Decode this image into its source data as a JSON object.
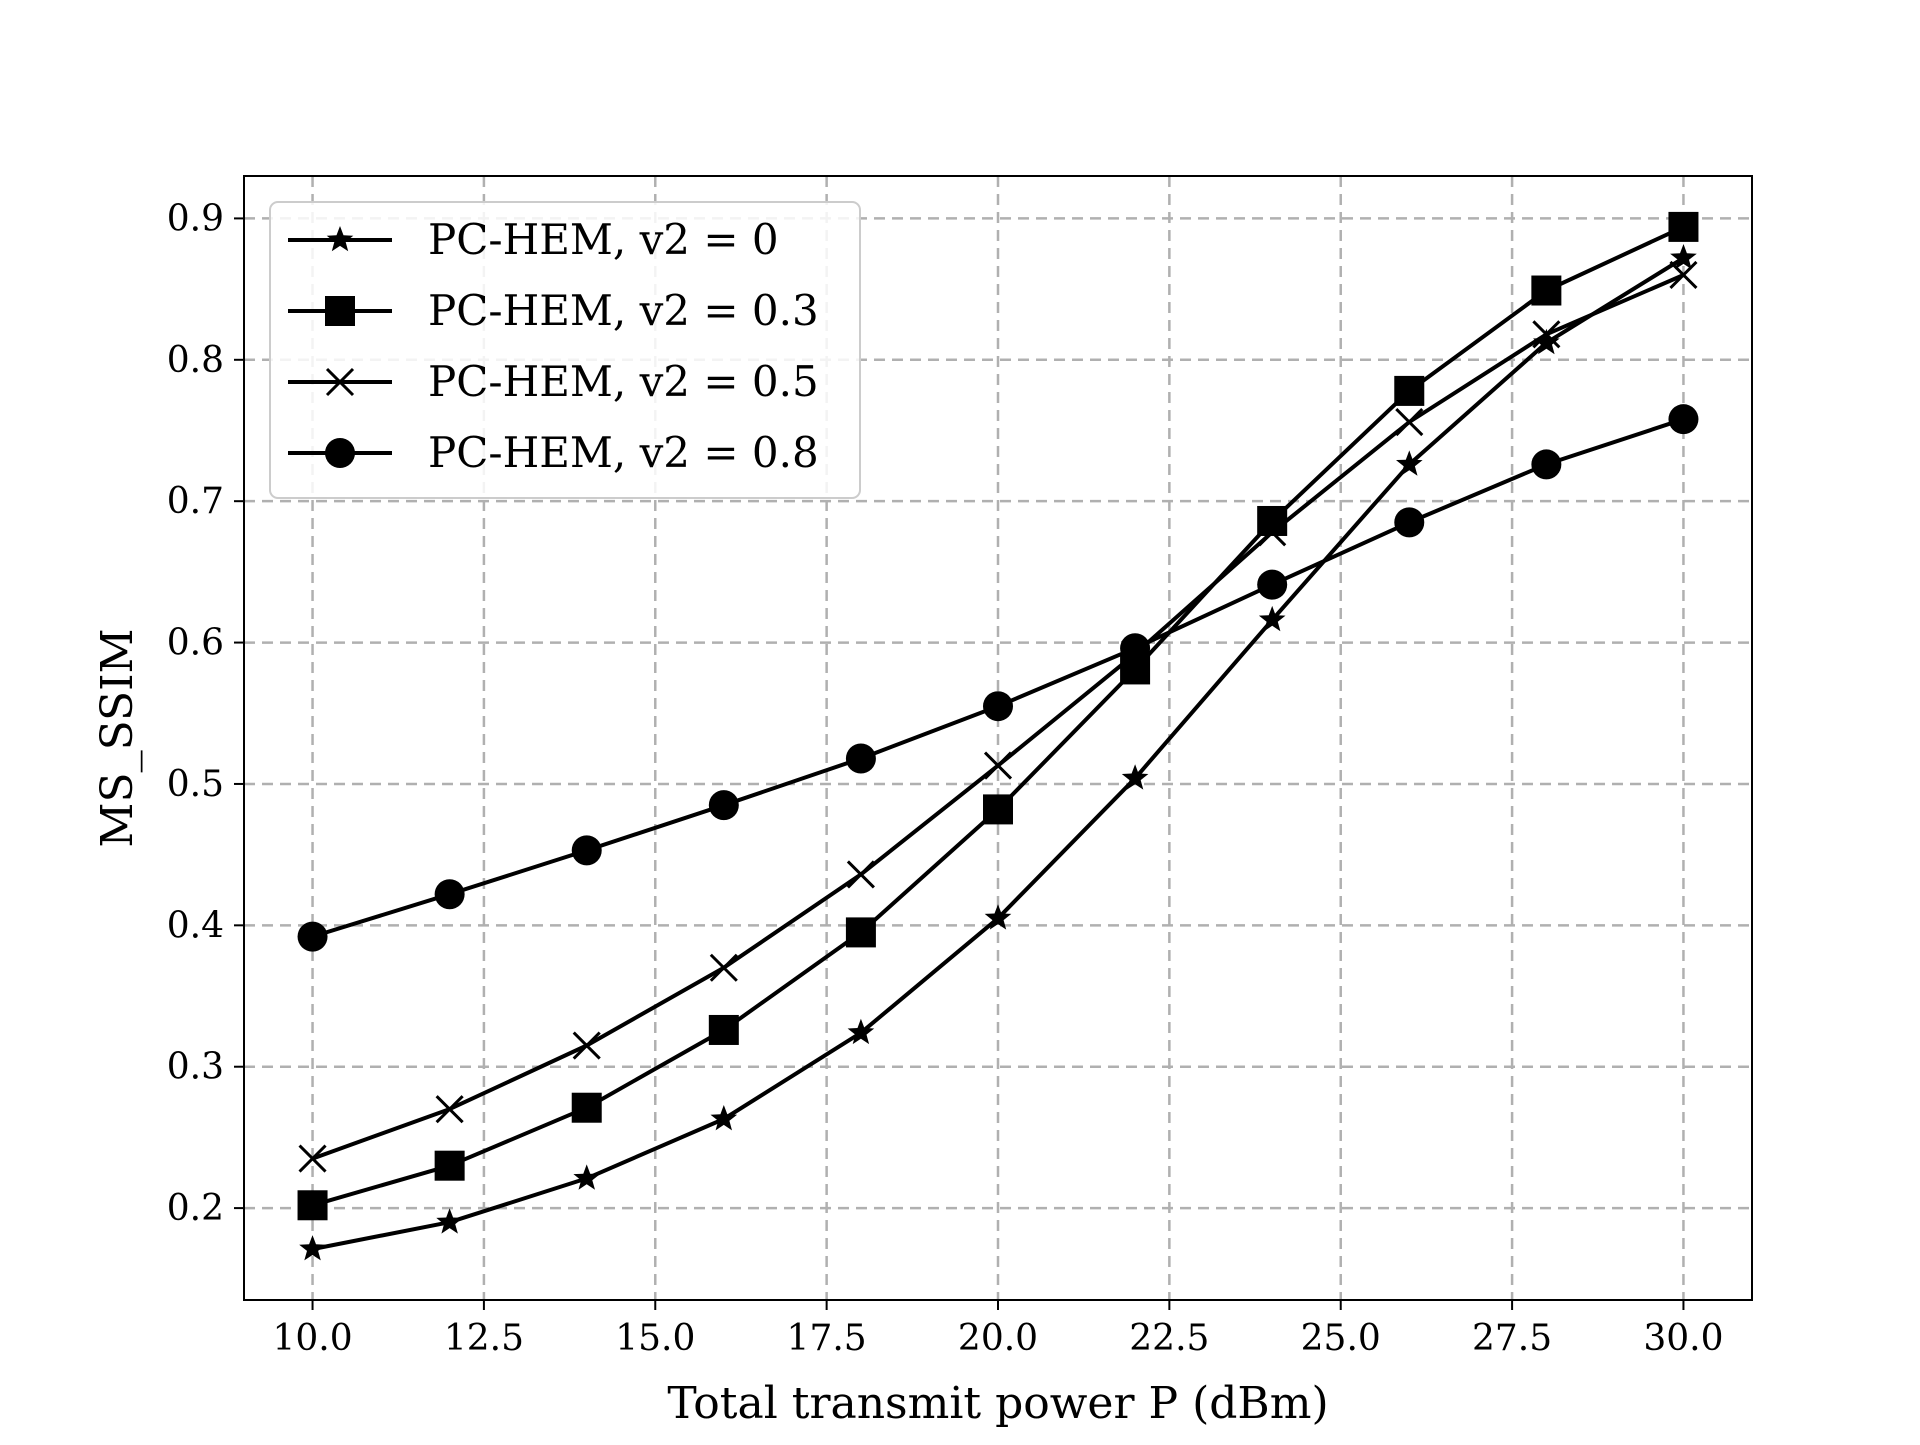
{
  "chart_data": {
    "type": "line",
    "title": "",
    "xlabel": "Total transmit power P (dBm)",
    "ylabel": "MS_SSIM",
    "xlim": [
      9.0,
      31.0
    ],
    "ylim": [
      0.135,
      0.93
    ],
    "xticks": [
      10.0,
      12.5,
      15.0,
      17.5,
      20.0,
      22.5,
      25.0,
      27.5,
      30.0
    ],
    "xtick_labels": [
      "10.0",
      "12.5",
      "15.0",
      "17.5",
      "20.0",
      "22.5",
      "25.0",
      "27.5",
      "30.0"
    ],
    "yticks": [
      0.2,
      0.3,
      0.4,
      0.5,
      0.6,
      0.7,
      0.8,
      0.9
    ],
    "ytick_labels": [
      "0.2",
      "0.3",
      "0.4",
      "0.5",
      "0.6",
      "0.7",
      "0.8",
      "0.9"
    ],
    "grid": true,
    "legend_position": "top-left",
    "line_color": "#000000",
    "grid_color": "#b0b0b0",
    "x": [
      10,
      12,
      14,
      16,
      18,
      20,
      22,
      24,
      26,
      28,
      30
    ],
    "series": [
      {
        "name": "PC-HEM, v2 = 0",
        "marker": "star",
        "values": [
          0.171,
          0.19,
          0.221,
          0.263,
          0.324,
          0.405,
          0.504,
          0.616,
          0.726,
          0.812,
          0.872
        ]
      },
      {
        "name": "PC-HEM, v2 = 0.3",
        "marker": "square",
        "values": [
          0.202,
          0.23,
          0.271,
          0.326,
          0.395,
          0.482,
          0.581,
          0.686,
          0.778,
          0.849,
          0.894
        ]
      },
      {
        "name": "PC-HEM, v2 = 0.5",
        "marker": "x",
        "values": [
          0.235,
          0.27,
          0.315,
          0.37,
          0.436,
          0.513,
          0.592,
          0.678,
          0.756,
          0.818,
          0.86
        ]
      },
      {
        "name": "PC-HEM, v2 = 0.8",
        "marker": "circle",
        "values": [
          0.392,
          0.422,
          0.453,
          0.485,
          0.518,
          0.555,
          0.596,
          0.641,
          0.685,
          0.726,
          0.758
        ]
      }
    ]
  }
}
